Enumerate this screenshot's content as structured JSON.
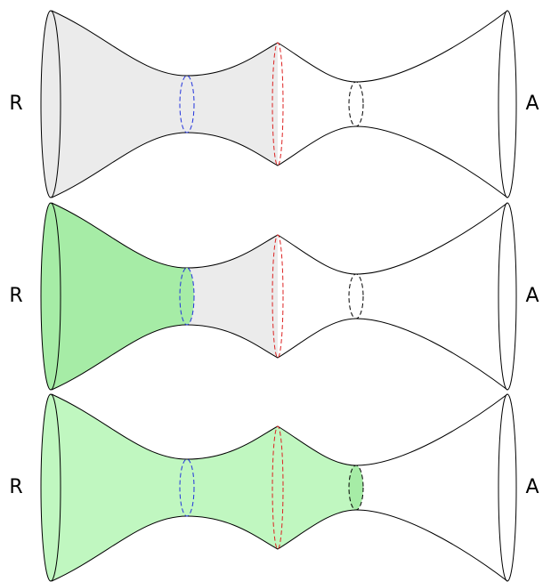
{
  "panels": [
    {
      "left": "R",
      "right": "A"
    },
    {
      "left": "R",
      "right": "A"
    },
    {
      "left": "R",
      "right": "A"
    }
  ]
}
